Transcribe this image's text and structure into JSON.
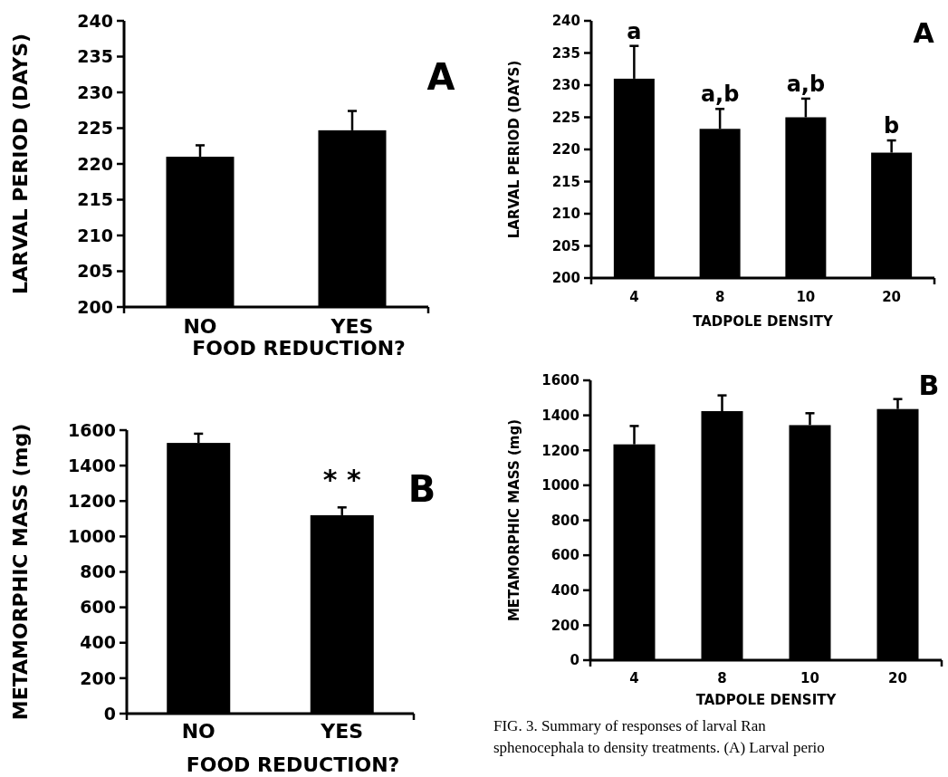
{
  "chart_data": [
    {
      "type": "bar",
      "ylabel": "LARVAL PERIOD (DAYS)",
      "xlabel": "FOOD REDUCTION?",
      "categories": [
        "NO",
        "YES"
      ],
      "values": [
        221.0,
        224.7
      ],
      "errors": [
        [
          221.0,
          222.6
        ],
        [
          224.7,
          227.4
        ]
      ],
      "color": "#000000",
      "ylim": [
        200,
        240
      ],
      "yticks": [
        200,
        205,
        210,
        215,
        220,
        225,
        230,
        235,
        240
      ],
      "annotations": [
        "A"
      ]
    },
    {
      "type": "bar",
      "ylabel": "METAMORPHIC MASS (mg)",
      "xlabel": "FOOD REDUCTION?",
      "categories": [
        "NO",
        "YES"
      ],
      "values": [
        1528,
        1120
      ],
      "errors": [
        [
          1528,
          1580
        ],
        [
          1120,
          1164
        ]
      ],
      "color": "#000000",
      "ylim": [
        0,
        1600
      ],
      "yticks": [
        0,
        200,
        400,
        600,
        800,
        1000,
        1200,
        1400,
        1600
      ],
      "annotations": [
        "B",
        "* *"
      ]
    },
    {
      "type": "bar",
      "ylabel": "LARVAL PERIOD (DAYS)",
      "xlabel": "TADPOLE DENSITY",
      "categories": [
        "4",
        "8",
        "10",
        "20"
      ],
      "values": [
        231.0,
        223.2,
        225.0,
        219.5
      ],
      "errors": [
        [
          231.0,
          236.1
        ],
        [
          223.2,
          226.3
        ],
        [
          225.0,
          227.9
        ],
        [
          219.5,
          221.4
        ]
      ],
      "color": "#000000",
      "ylim": [
        200,
        240
      ],
      "yticks": [
        200,
        205,
        210,
        215,
        220,
        225,
        230,
        235,
        240
      ],
      "annotations": [
        "A",
        "a",
        "a,b",
        "a,b",
        "b"
      ]
    },
    {
      "type": "bar",
      "ylabel": "METAMORPHIC MASS (mg)",
      "xlabel": "TADPOLE DENSITY",
      "categories": [
        "4",
        "8",
        "10",
        "20"
      ],
      "values": [
        1234,
        1424,
        1344,
        1436
      ],
      "errors": [
        [
          1234,
          1339
        ],
        [
          1424,
          1514
        ],
        [
          1344,
          1412
        ],
        [
          1436,
          1493
        ]
      ],
      "color": "#000000",
      "ylim": [
        0,
        1600
      ],
      "yticks": [
        0,
        200,
        400,
        600,
        800,
        1000,
        1200,
        1400,
        1600
      ],
      "annotations": [
        "B",
        "FIG. 3.  Summary of responses of larval Ran",
        "sphenocephala to density treatments. (A) Larval perio"
      ]
    }
  ]
}
